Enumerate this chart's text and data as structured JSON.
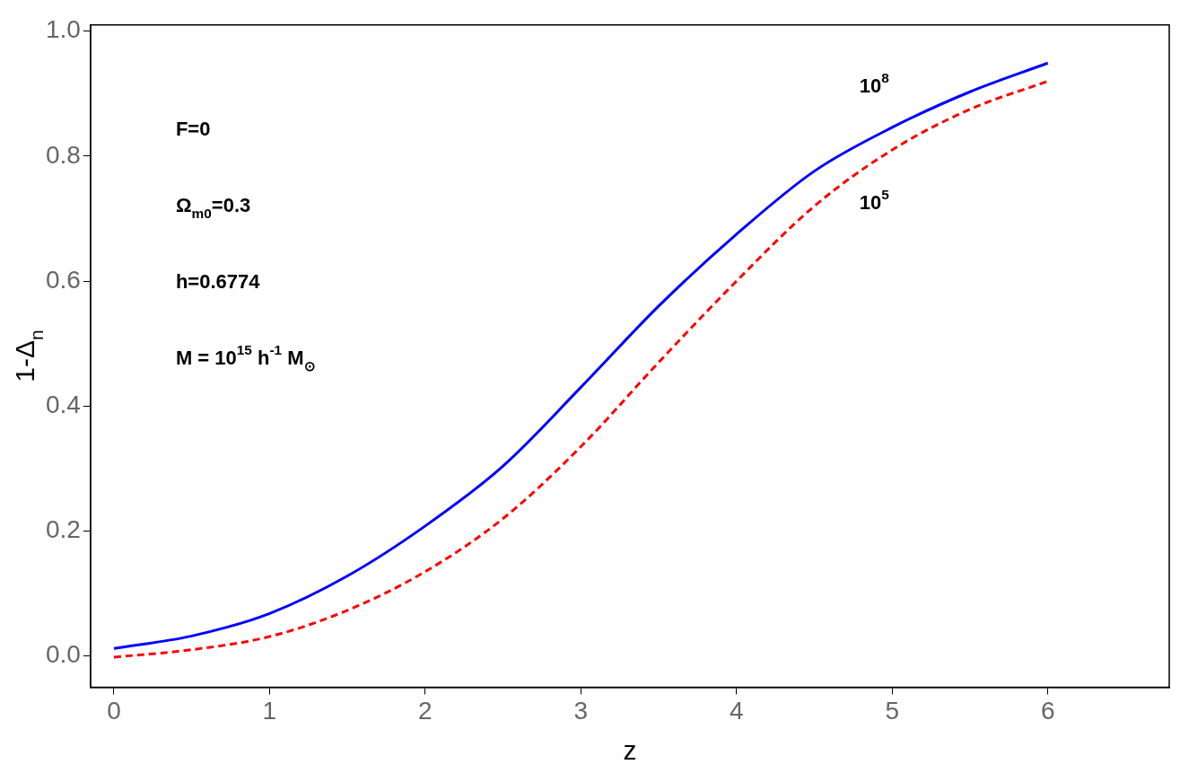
{
  "chart_data": {
    "type": "line",
    "xlabel": "z",
    "ylabel": "1-Δ$_{n}$",
    "xlim": [
      -0.15,
      6.78
    ],
    "ylim": [
      -0.05,
      1.01
    ],
    "xticks": [
      0,
      1,
      2,
      3,
      4,
      5,
      6
    ],
    "yticks": [
      {
        "value": 0,
        "label": "0.0"
      },
      0.2,
      0.4,
      0.6,
      0.8,
      {
        "value": 1,
        "label": "1.0"
      }
    ],
    "grid": false,
    "legend": false,
    "marker": "none",
    "series": [
      {
        "name": "10$^{8}$",
        "color": "#0000ff",
        "line_style": "solid",
        "x": [
          0,
          0.5,
          1,
          1.5,
          2,
          2.5,
          3,
          3.5,
          4,
          4.5,
          5,
          5.5,
          6
        ],
        "values": [
          0.012,
          0.032,
          0.068,
          0.128,
          0.208,
          0.304,
          0.43,
          0.56,
          0.675,
          0.776,
          0.846,
          0.903,
          0.949
        ]
      },
      {
        "name": "10$^{5}$",
        "color": "#ff0000",
        "line_style": "dashed",
        "x": [
          0,
          0.5,
          1,
          1.5,
          2,
          2.5,
          3,
          3.5,
          4,
          4.5,
          5,
          5.5,
          6
        ],
        "values": [
          -0.002,
          0.01,
          0.031,
          0.073,
          0.135,
          0.22,
          0.335,
          0.47,
          0.6,
          0.72,
          0.81,
          0.875,
          0.92
        ]
      }
    ],
    "annotations": [
      "F=0",
      "Ω$_{m0}$=0.3",
      "h=0.6774",
      "M = 10$^{15}$ h$^{-1}$ M$_{⊙}$"
    ]
  }
}
